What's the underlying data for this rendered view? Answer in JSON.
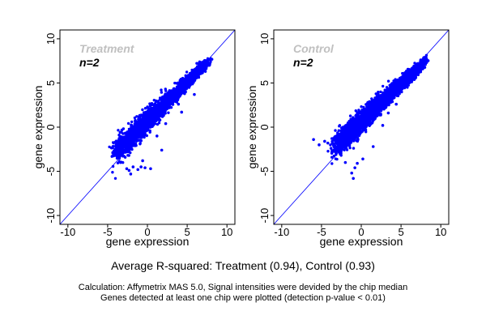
{
  "chart_data": [
    {
      "type": "scatter",
      "panel_title": "Treatment",
      "subtitle": "n=2",
      "xlabel": "gene expression",
      "ylabel": "gene expression",
      "xlim": [
        -11,
        11
      ],
      "ylim": [
        -11,
        11
      ],
      "xticks": [
        "-10",
        "-5",
        "0",
        "5",
        "10"
      ],
      "yticks": [
        "-10",
        "-5",
        "0",
        "5",
        "10"
      ],
      "reference_line": "y = x",
      "point_color": "#0000ff",
      "cloud": {
        "n": 2600,
        "x_range": [
          -4,
          7.4
        ],
        "slope": 0.88,
        "intercept": 0.7
      },
      "outliers": [
        [
          -4.2,
          -2.7
        ],
        [
          -3.9,
          -1.9
        ],
        [
          -2.6,
          -4.7
        ],
        [
          -2.3,
          -4.9
        ],
        [
          -2.1,
          -5.3
        ],
        [
          -1.8,
          -4.5
        ],
        [
          -1.2,
          -4.8
        ],
        [
          -0.8,
          -4.5
        ],
        [
          -0.3,
          -4.6
        ],
        [
          0.4,
          -4.7
        ],
        [
          1.8,
          -2.6
        ],
        [
          -0.6,
          -3.8
        ],
        [
          1.2,
          -1.0
        ],
        [
          2.3,
          0.4
        ],
        [
          3.9,
          2.6
        ],
        [
          4.3,
          1.7
        ],
        [
          5.9,
          3.7
        ],
        [
          5.0,
          4.5
        ],
        [
          -0.6,
          1.3
        ]
      ]
    },
    {
      "type": "scatter",
      "panel_title": "Control",
      "subtitle": "n=2",
      "xlabel": "gene expression",
      "ylabel": "gene expression",
      "xlim": [
        -11,
        11
      ],
      "ylim": [
        -11,
        11
      ],
      "xticks": [
        "-10",
        "-5",
        "0",
        "5",
        "10"
      ],
      "yticks": [
        "-10",
        "-5",
        "0",
        "5",
        "10"
      ],
      "reference_line": "y = x",
      "point_color": "#0000ff",
      "cloud": {
        "n": 2800,
        "x_range": [
          -3.3,
          7.8
        ],
        "slope": 0.85,
        "intercept": 0.6
      },
      "outliers": [
        [
          -6.0,
          -1.4
        ],
        [
          -5.3,
          -2.0
        ],
        [
          -4.6,
          -1.6
        ],
        [
          -4.2,
          -1.8
        ],
        [
          -3.8,
          -2.4
        ],
        [
          -1.2,
          -5.2
        ],
        [
          -1.0,
          -5.8
        ],
        [
          -0.8,
          -4.6
        ],
        [
          -0.5,
          -4.1
        ],
        [
          0.2,
          -3.6
        ],
        [
          1.5,
          -2.2
        ],
        [
          2.7,
          0.2
        ],
        [
          3.4,
          1.6
        ],
        [
          4.4,
          2.6
        ],
        [
          -2.0,
          -4.0
        ]
      ]
    }
  ],
  "footer": {
    "summary": "Average R-squared: Treatment (0.94), Control (0.93)",
    "note1": "Calculation: Affymetrix MAS 5.0, Signal intensities were devided by the chip median",
    "note2": "Genes detected at least one chip were plotted (detection p-value < 0.01)"
  }
}
